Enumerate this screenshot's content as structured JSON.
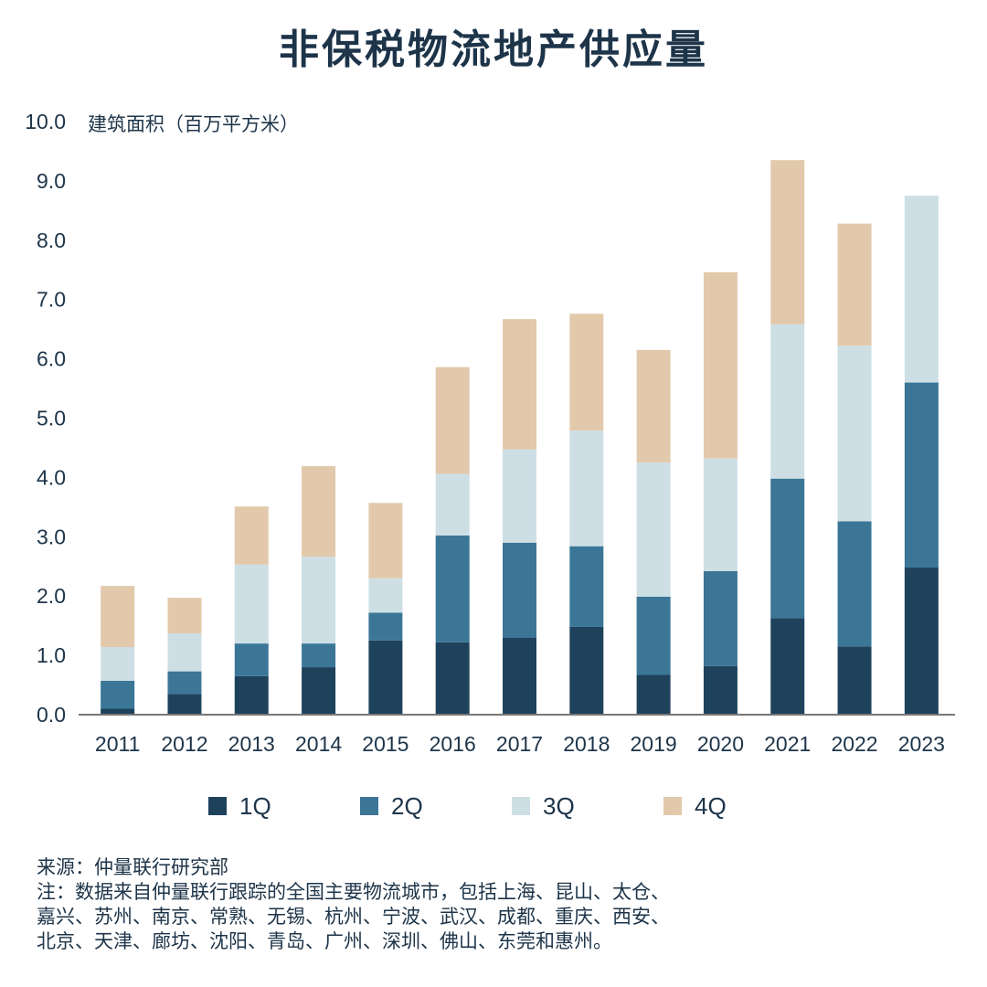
{
  "title": "非保税物流地产供应量",
  "colors": {
    "q1": "#1f425c",
    "q2": "#3b7697",
    "q3": "#cddfe5",
    "q4": "#e2c9ac",
    "axis": "#777777",
    "text": "#1d3449"
  },
  "chart_data": {
    "type": "bar",
    "stacked": true,
    "title": "非保税物流地产供应量",
    "ylabel": "建筑面积（百万平方米）",
    "xlabel": "",
    "ylim": [
      0,
      10
    ],
    "yticks": [
      "0.0",
      "1.0",
      "2.0",
      "3.0",
      "4.0",
      "5.0",
      "6.0",
      "7.0",
      "8.0",
      "9.0",
      "10.0"
    ],
    "categories": [
      "2011",
      "2012",
      "2013",
      "2014",
      "2015",
      "2016",
      "2017",
      "2018",
      "2019",
      "2020",
      "2021",
      "2022",
      "2023"
    ],
    "series": [
      {
        "name": "1Q",
        "values": [
          0.1,
          0.35,
          0.65,
          0.8,
          1.25,
          1.22,
          1.3,
          1.48,
          0.67,
          0.82,
          1.63,
          1.15,
          2.48
        ]
      },
      {
        "name": "2Q",
        "values": [
          0.47,
          0.38,
          0.55,
          0.4,
          0.47,
          1.8,
          1.6,
          1.36,
          1.32,
          1.6,
          2.35,
          2.11,
          3.12
        ]
      },
      {
        "name": "3Q",
        "values": [
          0.57,
          0.64,
          1.33,
          1.46,
          0.58,
          1.04,
          1.57,
          1.95,
          2.26,
          1.9,
          2.6,
          2.96,
          3.15
        ]
      },
      {
        "name": "4Q",
        "values": [
          1.03,
          0.6,
          0.98,
          1.53,
          1.27,
          1.8,
          2.2,
          1.97,
          1.9,
          3.14,
          2.77,
          2.06,
          0
        ]
      }
    ],
    "legend_position": "bottom"
  },
  "legend": [
    {
      "label": "1Q"
    },
    {
      "label": "2Q"
    },
    {
      "label": "3Q"
    },
    {
      "label": "4Q"
    }
  ],
  "footer": {
    "source": "来源：仲量联行研究部",
    "note_lines": [
      "注：数据来自仲量联行跟踪的全国主要物流城市，包括上海、昆山、太仓、",
      "嘉兴、苏州、南京、常熟、无锡、杭州、宁波、武汉、成都、重庆、西安、",
      "北京、天津、廊坊、沈阳、青岛、广州、深圳、佛山、东莞和惠州。"
    ]
  }
}
